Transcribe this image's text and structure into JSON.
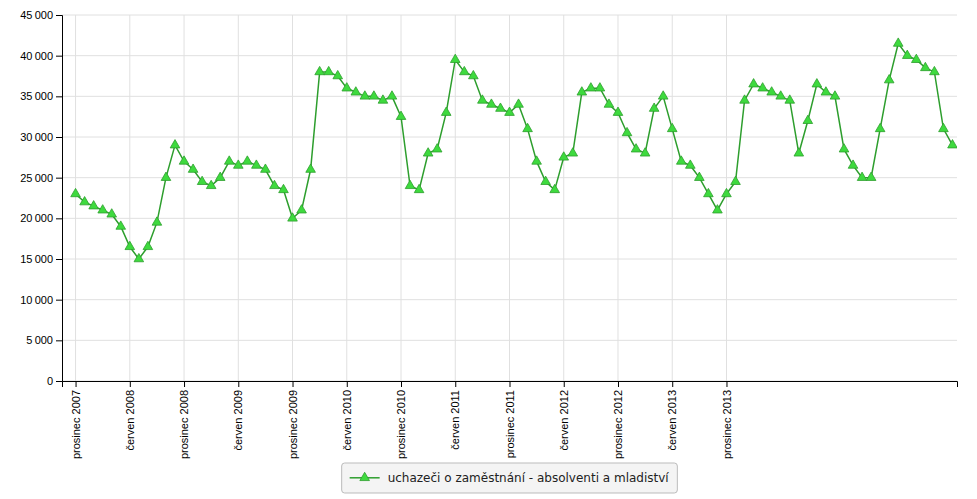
{
  "chart_data": {
    "type": "line",
    "categories": [
      "prosinec 2007",
      null,
      null,
      null,
      null,
      null,
      "červen 2008",
      null,
      null,
      null,
      null,
      null,
      "prosinec 2008",
      null,
      null,
      null,
      null,
      null,
      "červen 2009",
      null,
      null,
      null,
      null,
      null,
      "prosinec 2009",
      null,
      null,
      null,
      null,
      null,
      "červen 2010",
      null,
      null,
      null,
      null,
      null,
      "prosinec 2010",
      null,
      null,
      null,
      null,
      null,
      "červen 2011",
      null,
      null,
      null,
      null,
      null,
      "prosinec 2011",
      null,
      null,
      null,
      null,
      null,
      "červen 2012",
      null,
      null,
      null,
      null,
      null,
      "prosinec 2012",
      null,
      null,
      null,
      null,
      null,
      "červen 2013",
      null,
      null,
      null,
      null,
      null,
      "prosinec 2013",
      null,
      null,
      null,
      null,
      null,
      null,
      null,
      null,
      null,
      null,
      null,
      null,
      null,
      null,
      null,
      null,
      null,
      null,
      null,
      null,
      null,
      null,
      null,
      null,
      null
    ],
    "series": [
      {
        "name": "uchazeči o zaměstnání - absolventi a mladiství",
        "color": "#2d9e2d",
        "marker": "triangle",
        "values": [
          23000,
          22000,
          21500,
          21000,
          20500,
          19000,
          16500,
          15000,
          16500,
          19500,
          25000,
          29000,
          27000,
          26000,
          24500,
          24000,
          25000,
          27000,
          26500,
          27000,
          26500,
          26000,
          24000,
          23500,
          20000,
          21000,
          26000,
          38000,
          38000,
          37500,
          36000,
          35500,
          35000,
          35000,
          34500,
          35000,
          32500,
          24000,
          23500,
          28000,
          28500,
          33000,
          39500,
          38000,
          37500,
          34500,
          34000,
          33500,
          33000,
          34000,
          31000,
          27000,
          24500,
          23500,
          27500,
          28000,
          35500,
          36000,
          36000,
          34000,
          33000,
          30500,
          28500,
          28000,
          33500,
          35000,
          31000,
          27000,
          26500,
          25000,
          23000,
          21000,
          23000,
          24500,
          34500,
          36500,
          36000,
          35500,
          35000,
          34500,
          28000,
          32000,
          36500,
          35500,
          35000,
          28500,
          26500,
          25000,
          25000,
          31000,
          37000,
          41500,
          40000,
          39500,
          38500,
          38000,
          31000,
          29000
        ]
      }
    ],
    "ylim": [
      0,
      45000
    ],
    "yticks": [
      0,
      {
        "value": 5000,
        "label": "5 000"
      },
      {
        "value": 10000,
        "label": "10 000"
      },
      {
        "value": 15000,
        "label": "15 000"
      },
      {
        "value": 20000,
        "label": "20 000"
      },
      {
        "value": 25000,
        "label": "25 000"
      },
      {
        "value": 30000,
        "label": "30 000"
      },
      {
        "value": 35000,
        "label": "35 000"
      },
      {
        "value": 40000,
        "label": "40 000"
      },
      {
        "value": 45000,
        "label": "45 000"
      }
    ],
    "grid": true,
    "legend": "bottom"
  }
}
